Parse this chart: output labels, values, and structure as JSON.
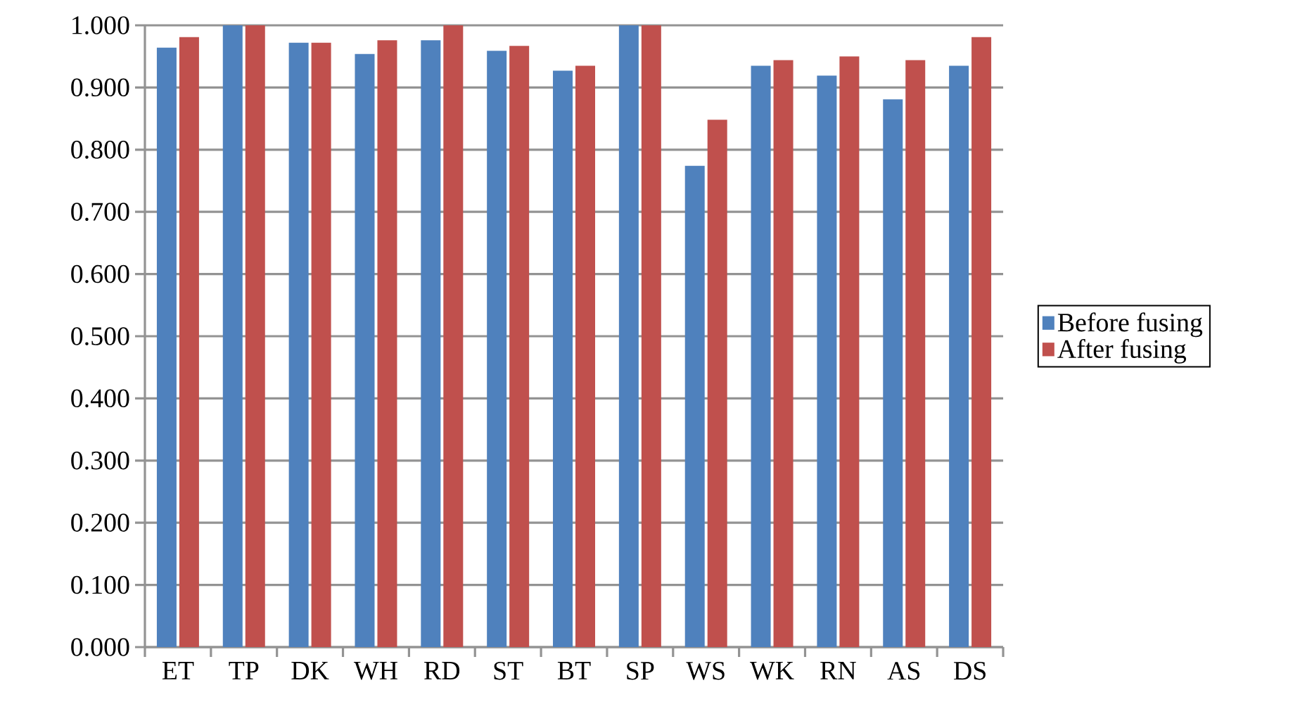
{
  "chart_data": {
    "type": "bar",
    "categories": [
      "ET",
      "TP",
      "DK",
      "WH",
      "RD",
      "ST",
      "BT",
      "SP",
      "WS",
      "WK",
      "RN",
      "AS",
      "DS"
    ],
    "series": [
      {
        "name": "Before fusing",
        "color": "#4f81bd",
        "values": [
          0.964,
          1.0,
          0.972,
          0.954,
          0.976,
          0.959,
          0.927,
          1.0,
          0.774,
          0.935,
          0.919,
          0.881,
          0.935
        ]
      },
      {
        "name": "After fusing",
        "color": "#c0504d",
        "values": [
          0.981,
          1.0,
          0.972,
          0.976,
          1.0,
          0.967,
          0.935,
          1.0,
          0.848,
          0.944,
          0.95,
          0.944,
          0.981
        ]
      }
    ],
    "ylim": [
      0,
      1
    ],
    "yticks": [
      {
        "value": 0,
        "label": "0.000"
      },
      {
        "value": 0.1,
        "label": "0.100"
      },
      {
        "value": 0.2,
        "label": "0.200"
      },
      {
        "value": 0.3,
        "label": "0.300"
      },
      {
        "value": 0.4,
        "label": "0.400"
      },
      {
        "value": 0.5,
        "label": "0.500"
      },
      {
        "value": 0.6,
        "label": "0.600"
      },
      {
        "value": 0.7,
        "label": "0.700"
      },
      {
        "value": 0.8,
        "label": "0.800"
      },
      {
        "value": 0.9,
        "label": "0.900"
      },
      {
        "value": 1,
        "label": "1.000"
      }
    ],
    "grid": "y",
    "legend": "right"
  }
}
